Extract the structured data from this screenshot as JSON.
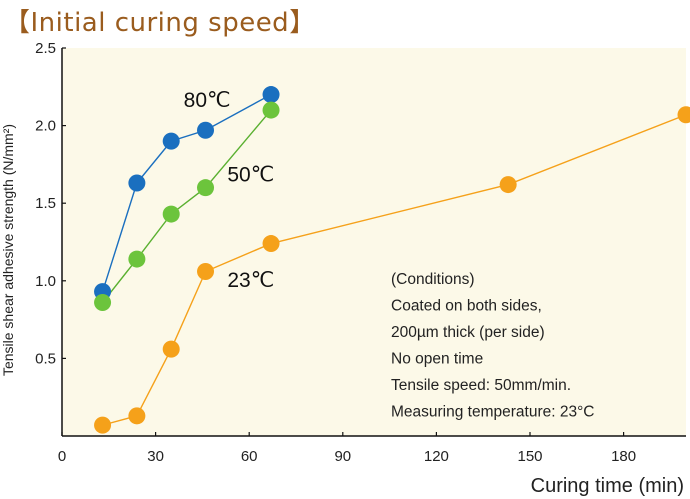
{
  "title": "【Initial curing speed】",
  "chart_data": {
    "type": "line",
    "title": "【Initial curing speed】",
    "xlabel": "Curing time (min)",
    "ylabel": "Tensile shear adhesive strength (N/mm²)",
    "xlim": [
      0,
      200
    ],
    "ylim": [
      0,
      2.5
    ],
    "xticks": [
      0,
      30,
      60,
      90,
      120,
      150,
      180
    ],
    "yticks": [
      0.5,
      1.0,
      1.5,
      2.0,
      2.5
    ],
    "xtick_labels": [
      "0",
      "30",
      "60",
      "90",
      "120",
      "150",
      "180"
    ],
    "ytick_labels": [
      "0.5",
      "1.0",
      "1.5",
      "2.0",
      "2.5"
    ],
    "grid": false,
    "background": "#fcf9e8",
    "series": [
      {
        "name": "80℃",
        "color": "#1a6fbf",
        "line_color": "#1a6fbf",
        "x": [
          13,
          24,
          35,
          46,
          67
        ],
        "y": [
          0.93,
          1.63,
          1.9,
          1.97,
          2.2
        ]
      },
      {
        "name": "50℃",
        "color": "#6cc43c",
        "line_color": "#5ab030",
        "x": [
          13,
          24,
          35,
          46,
          67
        ],
        "y": [
          0.86,
          1.14,
          1.43,
          1.6,
          2.1
        ]
      },
      {
        "name": "23℃",
        "color": "#f5a11a",
        "line_color": "#f5a11a",
        "x": [
          13,
          24,
          35,
          46,
          67,
          143,
          200
        ],
        "y": [
          0.07,
          0.13,
          0.56,
          1.06,
          1.24,
          1.62,
          2.07
        ]
      }
    ],
    "conditions": [
      "(Conditions)",
      "Coated on both sides,",
      "200µm thick (per side)",
      "No open time",
      "Tensile speed: 50mm/min.",
      "Measuring temperature: 23°C"
    ]
  }
}
